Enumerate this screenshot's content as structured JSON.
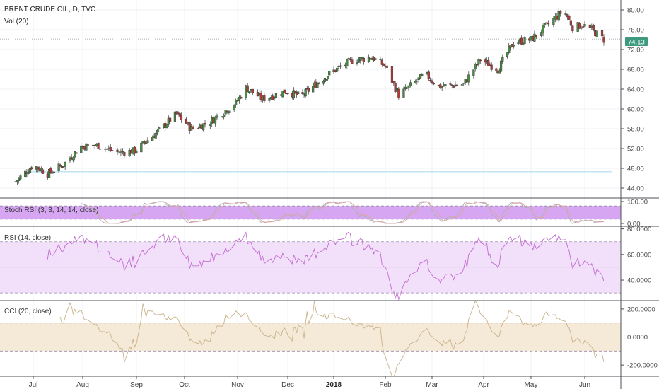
{
  "title": "BRENT CRUDE OIL, D, TVC",
  "subtitle": "Vol (20)",
  "colors": {
    "up": "#4a8b44",
    "down": "#b23a3a",
    "current_price_bg": "#3d9a7f",
    "rsi_line": "#c26bcf",
    "cci_line": "#c9b28a",
    "stoch_band": "#d6a6f2",
    "rsi_band": "#f2e0fb",
    "cci_band": "#f5ead8",
    "horizontal_line": "#9fd7ee"
  },
  "x_axis": {
    "months": [
      "Jul",
      "Aug",
      "Sep",
      "Oct",
      "Nov",
      "Dec",
      "2018",
      "Feb",
      "Mar",
      "Apr",
      "May",
      "Jun"
    ],
    "bold_label": "2018"
  },
  "chart_data": [
    {
      "type": "candlestick",
      "name": "price",
      "title": "BRENT CRUDE OIL, D, TVC",
      "ylim": [
        42,
        82
      ],
      "yticks": [
        "80.00",
        "76.00",
        "72.00",
        "68.00",
        "64.00",
        "60.00",
        "56.00",
        "52.00",
        "48.00",
        "44.00"
      ],
      "current_price": "74.13",
      "horizontal_line": 47.3,
      "anchor_closes": [
        {
          "date": "2017-06-20",
          "close": 45.3
        },
        {
          "date": "2017-07-01",
          "close": 48.7
        },
        {
          "date": "2017-07-10",
          "close": 46.9
        },
        {
          "date": "2017-07-20",
          "close": 48.8
        },
        {
          "date": "2017-07-31",
          "close": 52.5
        },
        {
          "date": "2017-08-10",
          "close": 52.6
        },
        {
          "date": "2017-08-20",
          "close": 51.2
        },
        {
          "date": "2017-08-31",
          "close": 51.5
        },
        {
          "date": "2017-09-15",
          "close": 55.6
        },
        {
          "date": "2017-09-26",
          "close": 59.0
        },
        {
          "date": "2017-10-05",
          "close": 56.0
        },
        {
          "date": "2017-10-15",
          "close": 57.2
        },
        {
          "date": "2017-10-31",
          "close": 61.2
        },
        {
          "date": "2017-11-06",
          "close": 64.3
        },
        {
          "date": "2017-11-16",
          "close": 62.0
        },
        {
          "date": "2017-11-30",
          "close": 63.6
        },
        {
          "date": "2017-12-10",
          "close": 62.5
        },
        {
          "date": "2017-12-26",
          "close": 66.5
        },
        {
          "date": "2018-01-12",
          "close": 69.8
        },
        {
          "date": "2018-01-24",
          "close": 70.4
        },
        {
          "date": "2018-02-01",
          "close": 68.6
        },
        {
          "date": "2018-02-09",
          "close": 62.8
        },
        {
          "date": "2018-02-25",
          "close": 67.0
        },
        {
          "date": "2018-03-05",
          "close": 64.5
        },
        {
          "date": "2018-03-20",
          "close": 65.0
        },
        {
          "date": "2018-03-30",
          "close": 70.0
        },
        {
          "date": "2018-04-10",
          "close": 68.0
        },
        {
          "date": "2018-04-20",
          "close": 73.5
        },
        {
          "date": "2018-05-01",
          "close": 74.0
        },
        {
          "date": "2018-05-10",
          "close": 76.8
        },
        {
          "date": "2018-05-20",
          "close": 80.0
        },
        {
          "date": "2018-05-25",
          "close": 76.5
        },
        {
          "date": "2018-05-31",
          "close": 77.0
        },
        {
          "date": "2018-06-05",
          "close": 76.0
        },
        {
          "date": "2018-06-12",
          "close": 74.0
        }
      ]
    },
    {
      "type": "line",
      "name": "stoch_rsi",
      "title": "Stoch RSI (3, 3, 14, 14, close)",
      "ylim": [
        0,
        100
      ],
      "yticks": [
        "100.00",
        "0.00"
      ],
      "band": [
        20,
        80
      ]
    },
    {
      "type": "line",
      "name": "rsi",
      "title": "RSI (14, close)",
      "ylim": [
        24,
        82
      ],
      "yticks": [
        "80.0000",
        "60.0000",
        "40.0000"
      ],
      "band": [
        30,
        70
      ]
    },
    {
      "type": "line",
      "name": "cci",
      "title": "CCI (20, close)",
      "ylim": [
        -280,
        260
      ],
      "yticks": [
        "200.0000",
        "0.0000",
        "-200.0000"
      ],
      "band": [
        -100,
        100
      ]
    }
  ]
}
